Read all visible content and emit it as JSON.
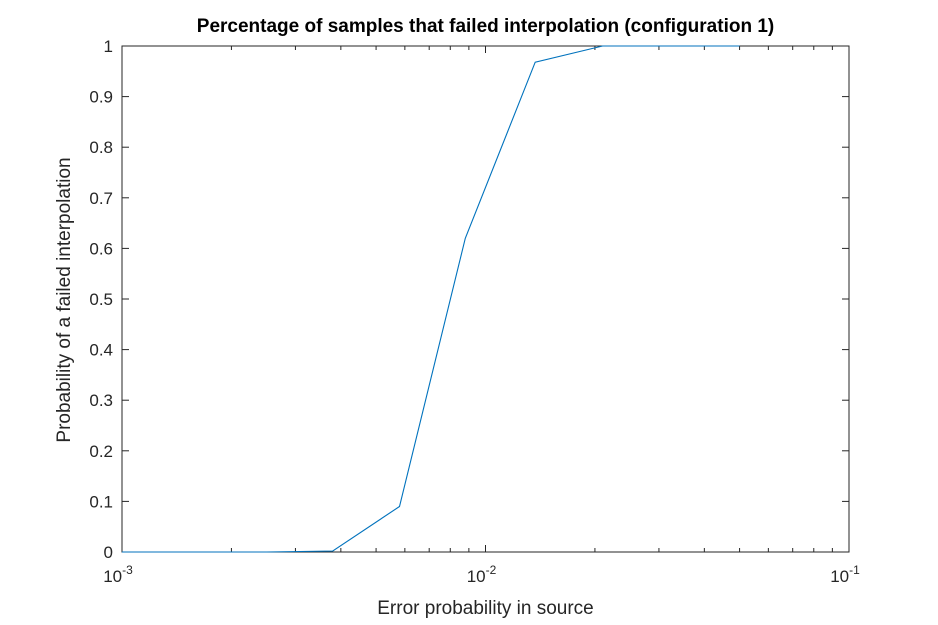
{
  "chart_data": {
    "type": "line",
    "title": "Percentage of samples that failed interpolation (configuration 1)",
    "xlabel": "Error probability in source",
    "ylabel": "Probability of a failed interpolation",
    "x_scale": "log",
    "xlim": [
      0.001,
      0.1
    ],
    "ylim": [
      0,
      1
    ],
    "x_ticks": [
      {
        "value": 0.001,
        "base": "10",
        "exp": "-3"
      },
      {
        "value": 0.01,
        "base": "10",
        "exp": "-2"
      },
      {
        "value": 0.1,
        "base": "10",
        "exp": "-1"
      }
    ],
    "y_ticks": [
      "0",
      "0.1",
      "0.2",
      "0.3",
      "0.4",
      "0.5",
      "0.6",
      "0.7",
      "0.8",
      "0.9",
      "1"
    ],
    "grid": false,
    "series": [
      {
        "color": "#0072bd",
        "x": [
          0.001,
          0.0015,
          0.0025,
          0.0038,
          0.0058,
          0.0088,
          0.0137,
          0.021,
          0.0325,
          0.05
        ],
        "y": [
          0.0,
          0.0,
          0.0,
          0.002,
          0.09,
          0.62,
          0.968,
          1.0,
          1.0,
          1.0
        ]
      }
    ]
  }
}
